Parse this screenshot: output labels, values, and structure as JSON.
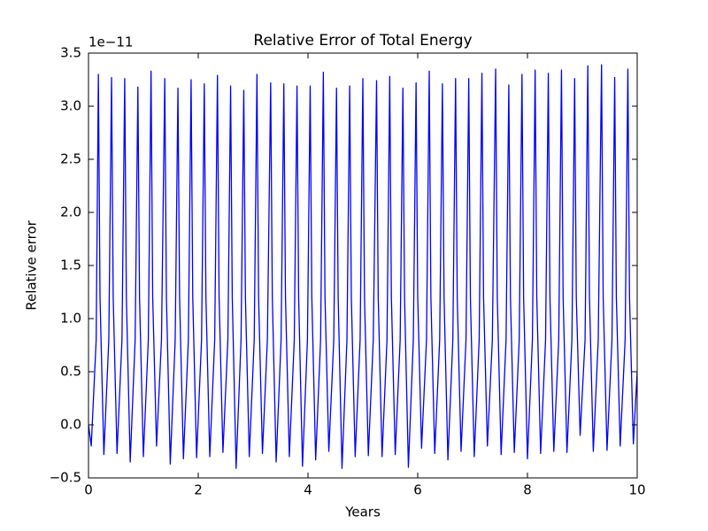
{
  "chart_data": {
    "type": "line",
    "title": "Relative Error of Total Energy",
    "xlabel": "Years",
    "ylabel": "Relative error",
    "y_offset_text": "1e−11",
    "color": "#0000ff",
    "grid": false,
    "xlim": [
      0,
      10
    ],
    "xticks": [
      0,
      2,
      4,
      6,
      8,
      10
    ],
    "ylim": [
      -0.5,
      3.5
    ],
    "yticks": [
      {
        "value": -0.5,
        "label": "−0.5"
      },
      {
        "value": 0,
        "label": "0.0"
      },
      0.5,
      {
        "value": 1,
        "label": "1.0"
      },
      1.5,
      {
        "value": 2,
        "label": "2.0"
      },
      2.5,
      {
        "value": 3,
        "label": "3.0"
      },
      3.5
    ],
    "x": [
      0,
      0.05,
      0.14,
      0.18,
      0.21,
      0.28,
      0.37,
      0.42,
      0.45,
      0.52,
      0.61,
      0.66,
      0.69,
      0.76,
      0.85,
      0.9,
      0.93,
      1.0,
      1.09,
      1.14,
      1.17,
      1.24,
      1.33,
      1.39,
      1.42,
      1.49,
      1.58,
      1.63,
      1.66,
      1.73,
      1.82,
      1.87,
      1.9,
      1.97,
      2.06,
      2.11,
      2.14,
      2.21,
      2.3,
      2.35,
      2.38,
      2.45,
      2.54,
      2.59,
      2.62,
      2.69,
      2.78,
      2.83,
      2.86,
      2.93,
      3.02,
      3.07,
      3.1,
      3.17,
      3.26,
      3.32,
      3.35,
      3.42,
      3.51,
      3.56,
      3.59,
      3.66,
      3.75,
      3.8,
      3.83,
      3.9,
      3.99,
      4.04,
      4.07,
      4.14,
      4.23,
      4.28,
      4.31,
      4.38,
      4.47,
      4.52,
      4.55,
      4.62,
      4.71,
      4.76,
      4.79,
      4.86,
      4.95,
      5.0,
      5.03,
      5.1,
      5.19,
      5.25,
      5.28,
      5.35,
      5.44,
      5.49,
      5.52,
      5.59,
      5.68,
      5.73,
      5.76,
      5.83,
      5.92,
      5.97,
      6.0,
      6.07,
      6.16,
      6.21,
      6.24,
      6.31,
      6.4,
      6.45,
      6.48,
      6.55,
      6.64,
      6.69,
      6.72,
      6.79,
      6.88,
      6.93,
      6.96,
      7.03,
      7.12,
      7.17,
      7.2,
      7.27,
      7.36,
      7.42,
      7.45,
      7.52,
      7.61,
      7.66,
      7.69,
      7.76,
      7.85,
      7.9,
      7.93,
      8.0,
      8.09,
      8.14,
      8.17,
      8.24,
      8.33,
      8.38,
      8.41,
      8.48,
      8.57,
      8.62,
      8.65,
      8.72,
      8.81,
      8.86,
      8.89,
      8.96,
      9.05,
      9.1,
      9.13,
      9.2,
      9.29,
      9.35,
      9.38,
      9.45,
      9.54,
      9.59,
      9.62,
      9.69,
      9.78,
      9.83,
      9.86,
      9.93,
      10
    ],
    "values": [
      0.0,
      -0.2,
      0.8,
      3.3,
      1.2,
      -0.28,
      0.8,
      3.27,
      1.2,
      -0.27,
      0.8,
      3.26,
      1.2,
      -0.35,
      0.8,
      3.18,
      1.2,
      -0.3,
      0.8,
      3.33,
      1.2,
      -0.2,
      0.8,
      3.26,
      1.2,
      -0.37,
      0.8,
      3.17,
      1.2,
      -0.32,
      0.8,
      3.25,
      1.2,
      -0.31,
      0.8,
      3.21,
      1.2,
      -0.3,
      0.8,
      3.29,
      1.2,
      -0.26,
      0.8,
      3.19,
      1.2,
      -0.41,
      0.8,
      3.15,
      1.2,
      -0.3,
      0.8,
      3.3,
      1.2,
      -0.27,
      0.8,
      3.22,
      1.2,
      -0.35,
      0.8,
      3.21,
      1.2,
      -0.3,
      0.8,
      3.19,
      1.2,
      -0.39,
      0.8,
      3.19,
      1.2,
      -0.33,
      0.8,
      3.32,
      1.2,
      -0.25,
      0.8,
      3.17,
      1.2,
      -0.41,
      0.8,
      3.19,
      1.2,
      -0.3,
      0.8,
      3.26,
      1.2,
      -0.29,
      0.8,
      3.24,
      1.2,
      -0.3,
      0.8,
      3.28,
      1.2,
      -0.28,
      0.8,
      3.17,
      1.2,
      -0.4,
      0.8,
      3.22,
      1.2,
      -0.22,
      0.8,
      3.33,
      1.2,
      -0.27,
      0.8,
      3.21,
      1.2,
      -0.33,
      0.8,
      3.26,
      1.2,
      -0.25,
      0.8,
      3.26,
      1.2,
      -0.3,
      0.8,
      3.31,
      1.2,
      -0.2,
      0.8,
      3.35,
      1.2,
      -0.28,
      0.8,
      3.2,
      1.2,
      -0.26,
      0.8,
      3.3,
      1.2,
      -0.32,
      0.8,
      3.34,
      1.2,
      -0.27,
      0.8,
      3.31,
      1.2,
      -0.25,
      0.8,
      3.34,
      1.2,
      -0.26,
      0.8,
      3.26,
      1.2,
      -0.1,
      0.8,
      3.38,
      1.2,
      -0.25,
      0.8,
      3.39,
      1.2,
      -0.24,
      0.8,
      3.27,
      1.2,
      -0.2,
      0.8,
      3.35,
      1.2,
      -0.18,
      0.5
    ]
  }
}
